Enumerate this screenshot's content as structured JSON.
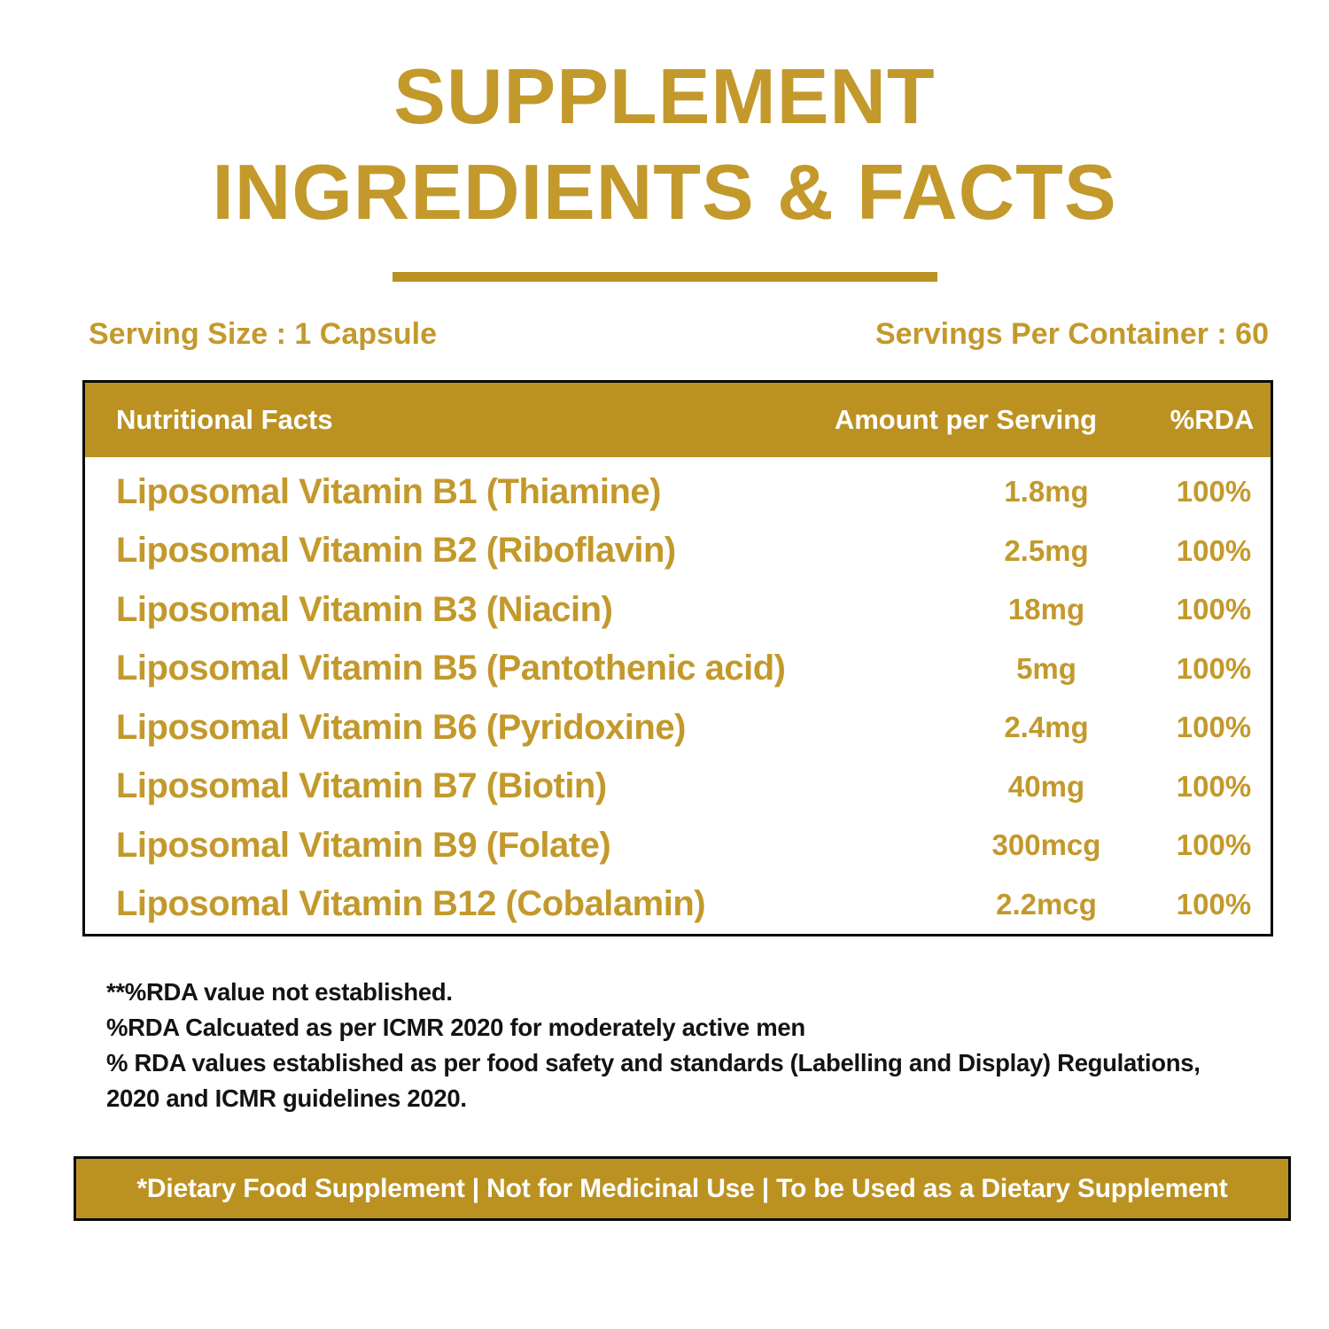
{
  "title": {
    "line1": "SUPPLEMENT",
    "line2": "INGREDIENTS & FACTS"
  },
  "serving": {
    "size_label": "Serving Size : 1 Capsule",
    "per_container_label": "Servings Per Container : 60"
  },
  "table": {
    "headers": {
      "name": "Nutritional Facts",
      "amount": "Amount per Serving",
      "rda": "%RDA"
    },
    "rows": [
      {
        "name": "Liposomal Vitamin B1 (Thiamine)",
        "amount": "1.8mg",
        "rda": "100%"
      },
      {
        "name": "Liposomal Vitamin B2 (Riboflavin)",
        "amount": "2.5mg",
        "rda": "100%"
      },
      {
        "name": "Liposomal Vitamin B3 (Niacin)",
        "amount": "18mg",
        "rda": "100%"
      },
      {
        "name": "Liposomal Vitamin B5 (Pantothenic acid)",
        "amount": "5mg",
        "rda": "100%"
      },
      {
        "name": "Liposomal Vitamin B6 (Pyridoxine)",
        "amount": "2.4mg",
        "rda": "100%"
      },
      {
        "name": "Liposomal Vitamin B7 (Biotin)",
        "amount": "40mg",
        "rda": "100%"
      },
      {
        "name": "Liposomal Vitamin B9 (Folate)",
        "amount": "300mcg",
        "rda": "100%"
      },
      {
        "name": "Liposomal Vitamin B12 (Cobalamin)",
        "amount": "2.2mcg",
        "rda": "100%"
      }
    ]
  },
  "notes": {
    "lines": [
      "**%RDA value not established.",
      "%RDA Calcuated as per ICMR 2020 for moderately active men",
      "% RDA values established as per food safety and standards (Labelling and Display) Regulations,",
      "2020 and ICMR guidelines 2020."
    ]
  },
  "banner": {
    "text": "*Dietary Food Supplement | Not for Medicinal Use | To be Used as a Dietary Supplement"
  },
  "colors": {
    "gold": "#BB9221",
    "gold_text": "#C3992C",
    "header_text": "#FFFFFF",
    "note_text": "#131313",
    "border": "#0A0A0A"
  }
}
